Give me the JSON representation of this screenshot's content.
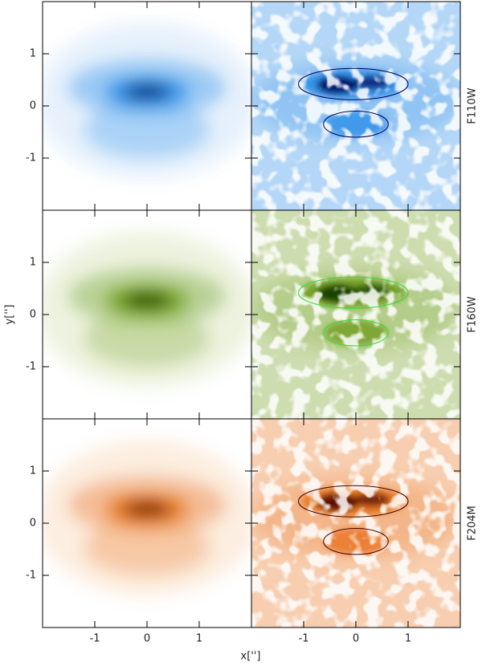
{
  "figure": {
    "xlabel": "x['']",
    "ylabel": "y['']",
    "xlim": [
      -2,
      2
    ],
    "ylim": [
      -2,
      2
    ],
    "xticks": [
      -1,
      0,
      1
    ],
    "yticks": [
      -1,
      0,
      1
    ],
    "rows": [
      {
        "label": "F110W",
        "color": "#2b8de8",
        "dark": "#00005a"
      },
      {
        "label": "F160W",
        "color": "#6f9e1e",
        "dark": "#0b3300"
      },
      {
        "label": "F204M",
        "color": "#e8731e",
        "dark": "#4a0000"
      }
    ]
  }
}
